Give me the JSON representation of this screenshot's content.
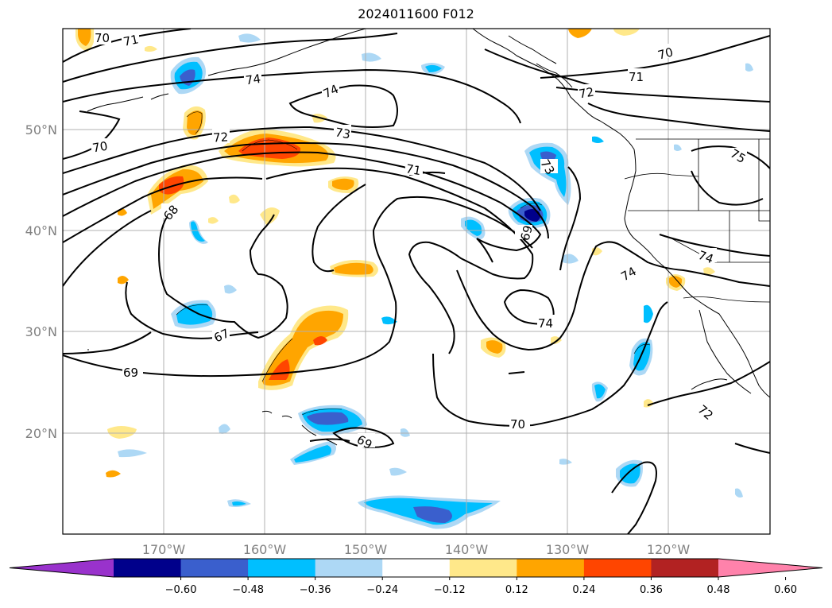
{
  "title": "2024011600 F012",
  "map": {
    "lat_labels": [
      "50°N",
      "40°N",
      "30°N",
      "20°N"
    ],
    "lon_labels": [
      "170°W",
      "160°W",
      "150°W",
      "140°W",
      "130°W",
      "120°W"
    ],
    "contour_labels": [
      "70",
      "71",
      "74",
      "74",
      "72",
      "73",
      "71",
      "68",
      "69",
      "67",
      "69",
      "70",
      "73",
      "69",
      "74",
      "70",
      "71",
      "72",
      "75",
      "74",
      "74",
      "70",
      "72"
    ]
  },
  "colorbar": {
    "colors": [
      "#9932cc",
      "#00008b",
      "#3a5fcd",
      "#00bfff",
      "#add8f5",
      "#ffffff",
      "#ffe88a",
      "#ffa500",
      "#ff4500",
      "#b22222",
      "#ff82ab"
    ],
    "ticks": [
      "−0.60",
      "−0.48",
      "−0.36",
      "−0.24",
      "−0.12",
      "0.12",
      "0.24",
      "0.36",
      "0.48",
      "0.60"
    ]
  }
}
